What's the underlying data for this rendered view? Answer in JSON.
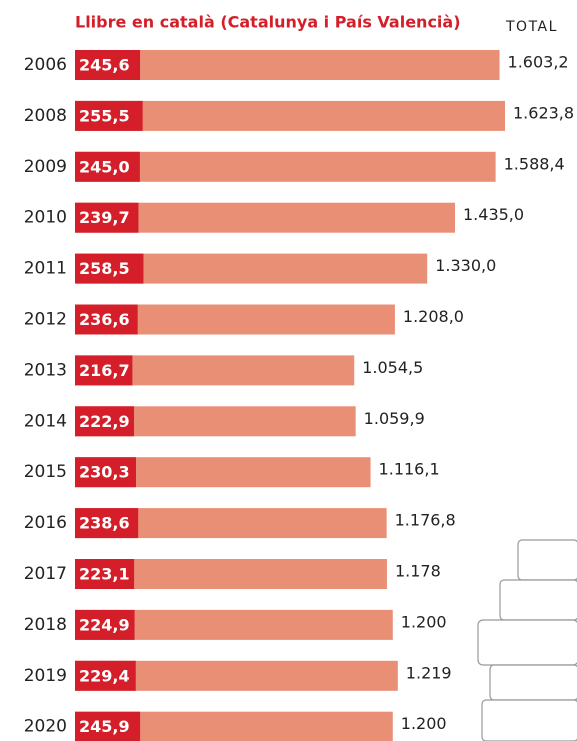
{
  "chart_data": {
    "type": "bar",
    "orientation": "horizontal",
    "categories": [
      "2006",
      "2008",
      "2009",
      "2010",
      "2011",
      "2012",
      "2013",
      "2014",
      "2015",
      "2016",
      "2017",
      "2018",
      "2019",
      "2020"
    ],
    "series": [
      {
        "name": "TOTAL",
        "color": "#e98f76",
        "values": [
          1603.2,
          1623.8,
          1588.4,
          1435.0,
          1330.0,
          1208.0,
          1054.5,
          1059.9,
          1116.1,
          1176.8,
          1178,
          1200,
          1219,
          1200
        ],
        "value_labels": [
          "1.603,2",
          "1.623,8",
          "1.588,4",
          "1.435,0",
          "1.330,0",
          "1.208,0",
          "1.054,5",
          "1.059,9",
          "1.116,1",
          "1.176,8",
          "1.178",
          "1.200",
          "1.219",
          "1.200"
        ]
      },
      {
        "name": "Llibre en català (Catalunya i País Valencià)",
        "color": "#d41f2a",
        "values": [
          245.6,
          255.5,
          245.0,
          239.7,
          258.5,
          236.6,
          216.7,
          222.9,
          230.3,
          238.6,
          223.1,
          224.9,
          229.4,
          245.9
        ],
        "value_labels": [
          "245,6",
          "255,5",
          "245,0",
          "239,7",
          "258,5",
          "236,6",
          "216,7",
          "222,9",
          "230,3",
          "238,6",
          "223,1",
          "224,9",
          "229,4",
          "245,9"
        ]
      }
    ]
  }
}
